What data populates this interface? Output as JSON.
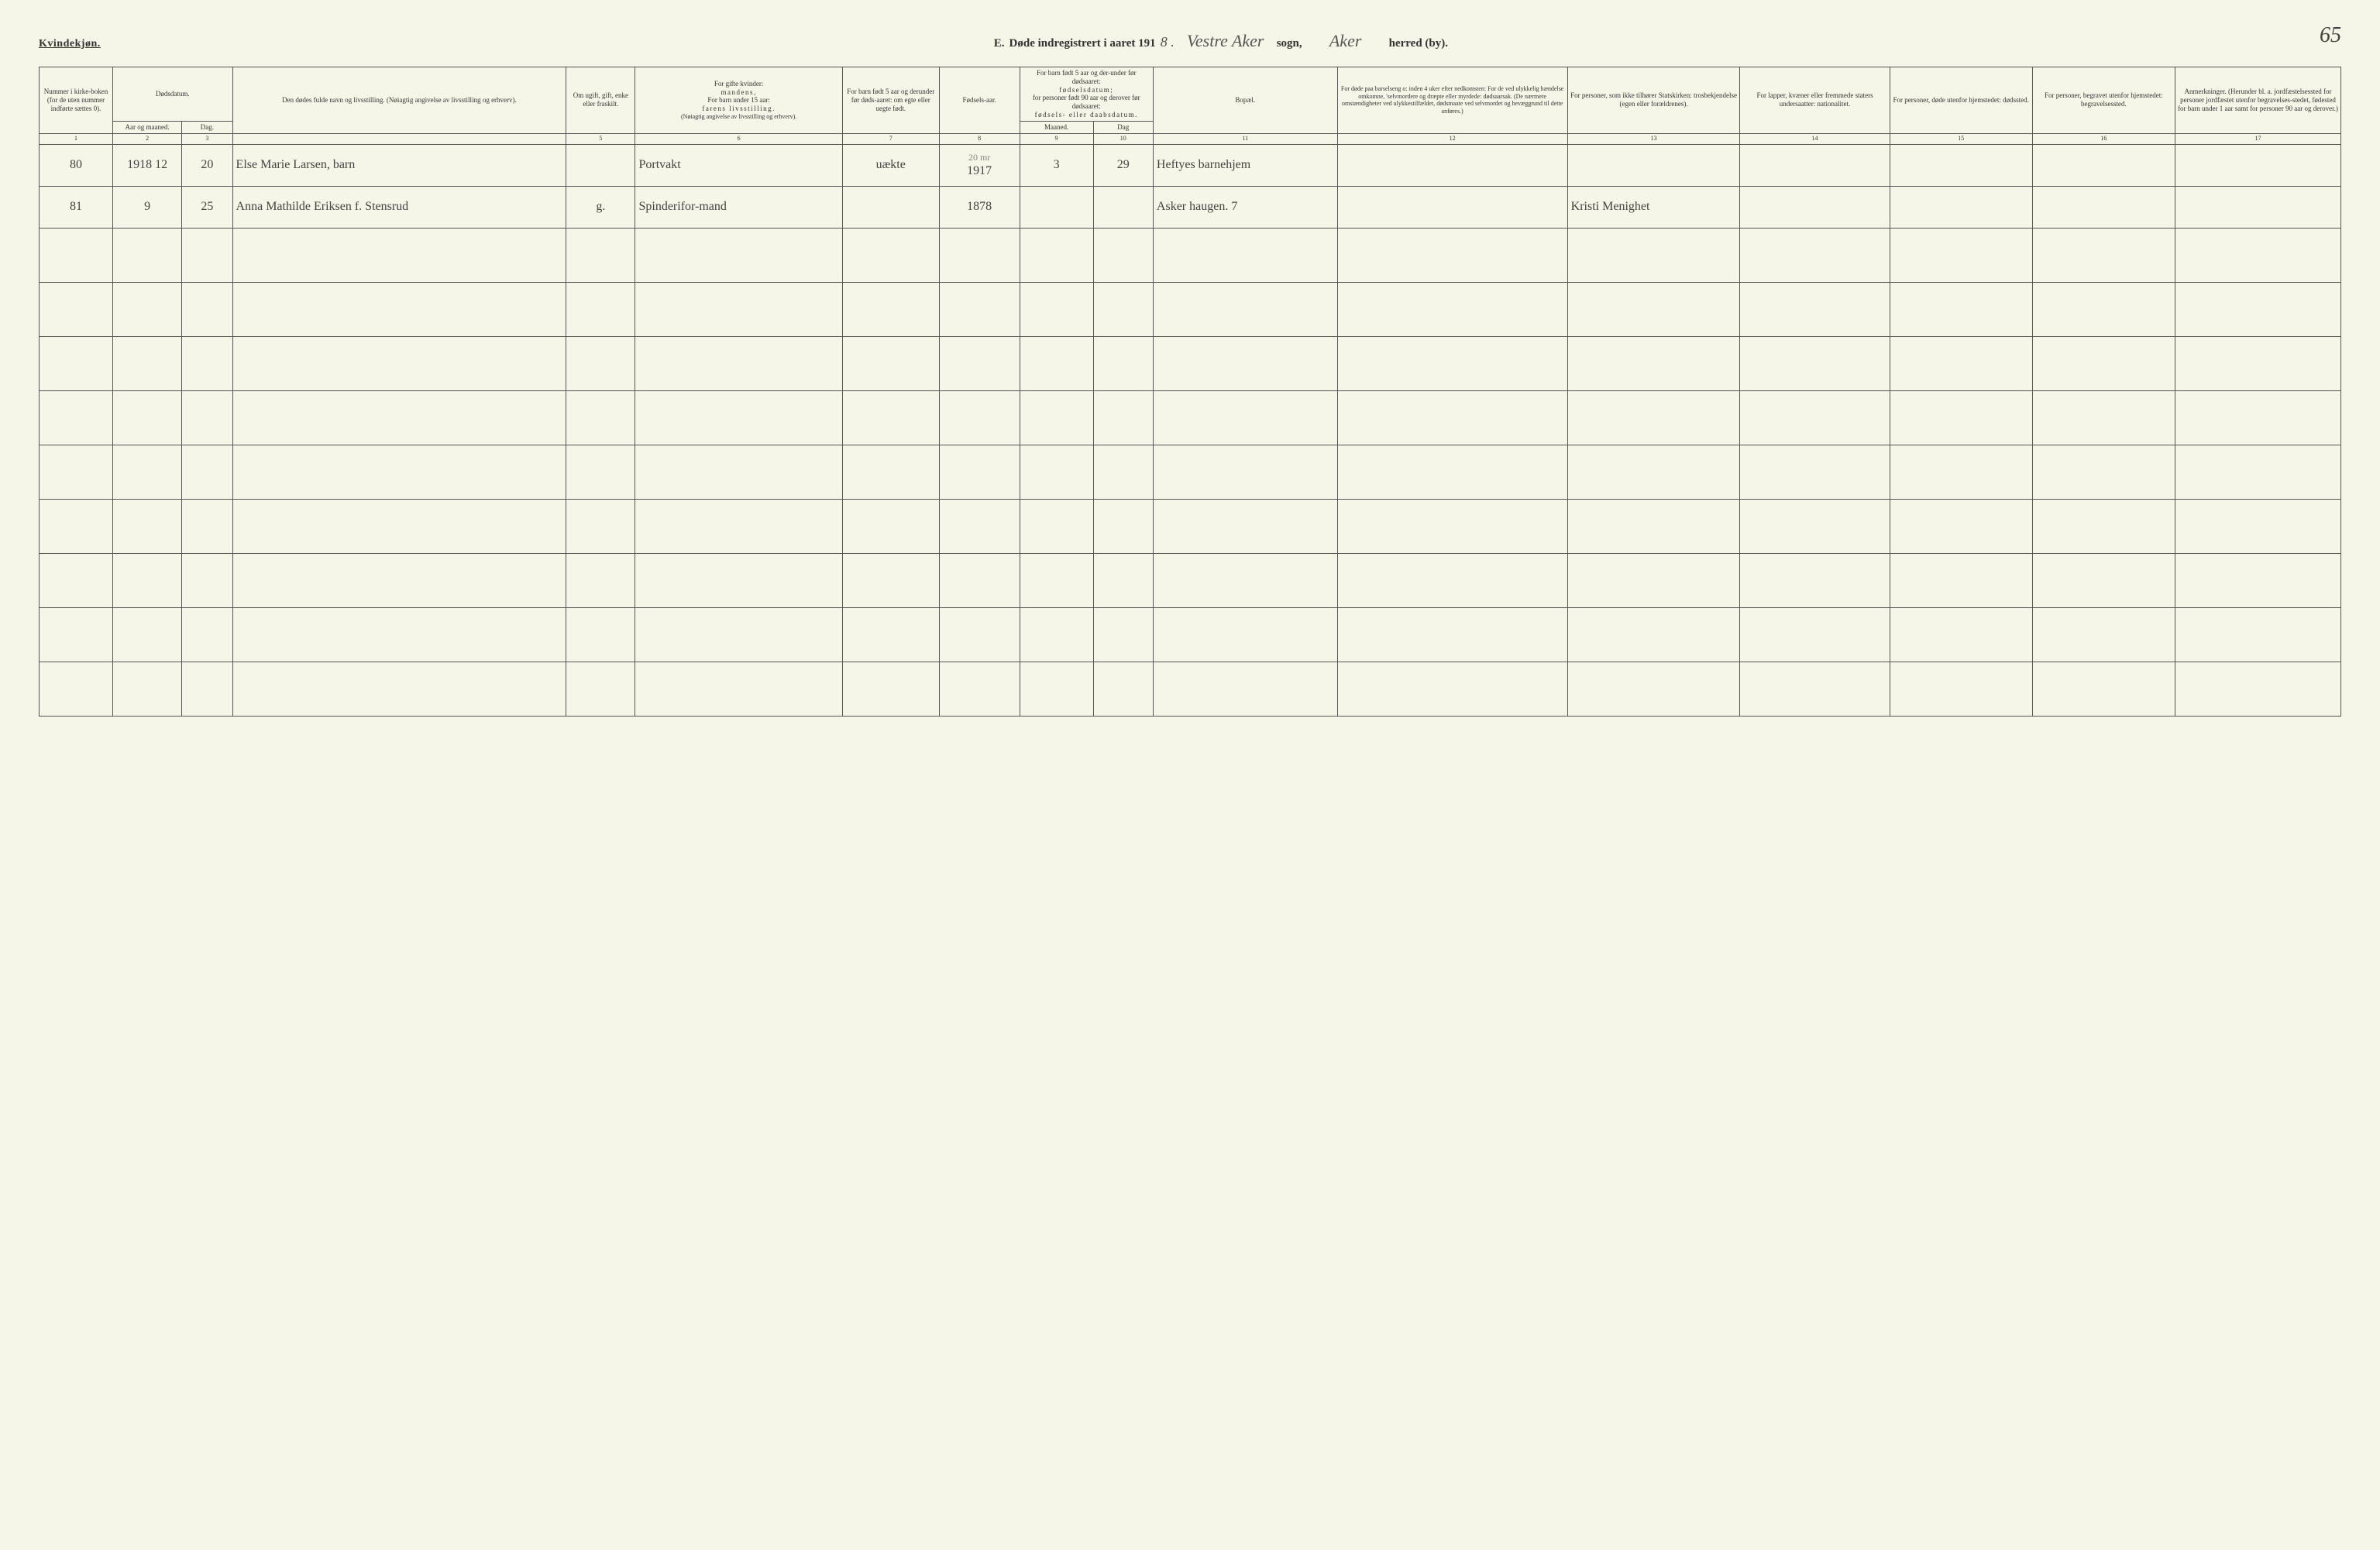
{
  "header": {
    "gender": "Kvindekjøn.",
    "section_letter": "E.",
    "title_prefix": "Døde indregistrert i aaret 191",
    "year_suffix": "8 .",
    "sogn_handwritten": "Vestre Aker",
    "sogn_label": "sogn,",
    "herred_handwritten": "Aker",
    "herred_label": "herred (by).",
    "page_number": "65"
  },
  "columns": {
    "c1": "Nummer i kirke-boken (for de uten nummer indførte sættes 0).",
    "c2_group": "Dødsdatum.",
    "c2": "Aar og maaned.",
    "c3": "Dag.",
    "c4": "Den dødes fulde navn og livsstilling. (Nøiagtig angivelse av livsstilling og erhverv).",
    "c5": "Om ugift, gift, enke eller fraskilt.",
    "c6_a": "For gifte kvinder:",
    "c6_b": "mandens,",
    "c6_c": "For barn under 15 aar:",
    "c6_d": "farens livsstilling.",
    "c6_e": "(Nøiagtig angivelse av livsstilling og erhverv).",
    "c7": "For barn født 5 aar og derunder før døds-aaret: om egte eller uegte født.",
    "c8": "Fødsels-aar.",
    "c9_10_a": "For barn født 5 aar og der-under før dødsaaret:",
    "c9_10_b": "fødselsdatum;",
    "c9_10_c": "for personer født 90 aar og derover før dødsaaret:",
    "c9_10_d": "fødsels- eller daabsdatum.",
    "c9": "Maaned.",
    "c10": "Dag",
    "c11": "Bopæl.",
    "c12": "For døde paa barselseng o: inden 4 uker efter nedkomsten: For de ved ulykkelig hændelse omkomne, 'selvmordere og dræpte eller myrdede: dødsaarsak. (De nærmere omstændigheter ved ulykkestilfældet, dødsmaate ved selvmordet og bevæggrund til dette anføres.)",
    "c13": "For personer, som ikke tilhører Statskirken: trosbekjendelse (egen eller forældrenes).",
    "c14": "For lapper, kvæner eller fremmede staters undersaatter: nationalitet.",
    "c15": "For personer, døde utenfor hjemstedet: dødssted.",
    "c16": "For personer, begravet utenfor hjemstedet: begravelsessted.",
    "c17": "Anmerkninger. (Herunder bl. a. jordfæstelsessted for personer jordfæstet utenfor begravelses-stedet, fødested for barn under 1 aar samt for personer 90 aar og derover.)"
  },
  "col_numbers": [
    "1",
    "2",
    "3",
    "",
    "5",
    "6",
    "7",
    "8",
    "9",
    "10",
    "11",
    "12",
    "13",
    "14",
    "15",
    "16",
    "17"
  ],
  "col_widths_pct": [
    3.2,
    3.0,
    2.2,
    14.5,
    3.0,
    9.0,
    4.2,
    3.5,
    3.2,
    2.6,
    8.0,
    10.0,
    7.5,
    6.5,
    6.2,
    6.2,
    7.2
  ],
  "rows": [
    {
      "num": "80",
      "year_month": "1918 12",
      "day": "20",
      "name": "Else Marie Larsen, barn",
      "status": "",
      "occupation": "Portvakt",
      "legit": "uækte",
      "birth_year": "1917",
      "birth_extra": "20 mr",
      "b_month": "3",
      "b_day": "29",
      "residence": "Heftyes barnehjem",
      "cause": "",
      "faith": "",
      "nat": "",
      "death_place": "",
      "burial_place": "",
      "notes": ""
    },
    {
      "num": "81",
      "year_month": "9",
      "day": "25",
      "name": "Anna Mathilde Eriksen f. Stensrud",
      "status": "g.",
      "occupation": "Spinderifor-mand",
      "legit": "",
      "birth_year": "1878",
      "birth_extra": "",
      "b_month": "",
      "b_day": "",
      "residence": "Asker haugen. 7",
      "cause": "",
      "faith": "Kristi Menighet",
      "nat": "",
      "death_place": "",
      "burial_place": "",
      "notes": ""
    }
  ],
  "empty_row_count": 9,
  "colors": {
    "page_bg": "#f5f5e8",
    "border": "#555555",
    "text": "#333333",
    "handwriting": "#444444"
  }
}
